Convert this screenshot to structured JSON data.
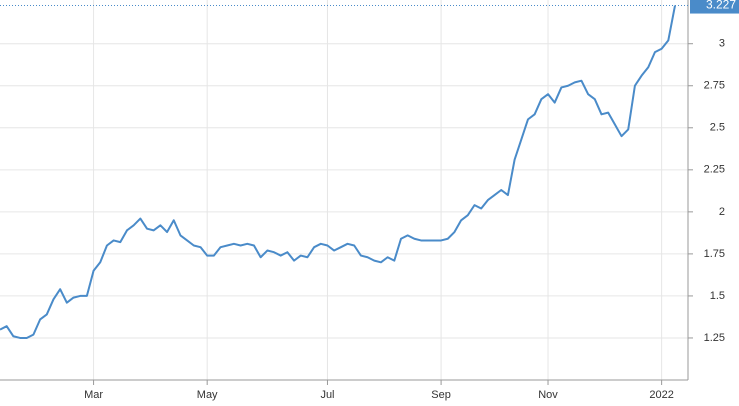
{
  "chart_data": {
    "type": "line",
    "categories": [
      null,
      null,
      null,
      null,
      null,
      null,
      null,
      null,
      null,
      null,
      null,
      null,
      null,
      null,
      "Mar",
      null,
      null,
      null,
      null,
      null,
      null,
      null,
      null,
      null,
      null,
      null,
      null,
      null,
      null,
      null,
      null,
      "May",
      null,
      null,
      null,
      null,
      null,
      null,
      null,
      null,
      null,
      null,
      null,
      null,
      null,
      null,
      null,
      null,
      null,
      "Jul",
      null,
      null,
      null,
      null,
      null,
      null,
      null,
      null,
      null,
      null,
      null,
      null,
      null,
      null,
      null,
      null,
      "Sep",
      null,
      null,
      null,
      null,
      null,
      null,
      null,
      null,
      null,
      null,
      null,
      null,
      null,
      null,
      null,
      "Nov",
      null,
      null,
      null,
      null,
      null,
      null,
      null,
      null,
      null,
      null,
      null,
      null,
      null,
      null,
      null,
      null,
      "2022",
      null,
      null
    ],
    "series": [
      {
        "color": "#4a8bc9",
        "values": [
          1.3,
          1.32,
          1.26,
          1.25,
          1.25,
          1.27,
          1.36,
          1.39,
          1.48,
          1.54,
          1.46,
          1.49,
          1.5,
          1.5,
          1.65,
          1.7,
          1.8,
          1.83,
          1.82,
          1.89,
          1.92,
          1.96,
          1.9,
          1.89,
          1.92,
          1.88,
          1.95,
          1.86,
          1.83,
          1.8,
          1.79,
          1.74,
          1.74,
          1.79,
          1.8,
          1.81,
          1.8,
          1.81,
          1.8,
          1.73,
          1.77,
          1.76,
          1.74,
          1.76,
          1.71,
          1.74,
          1.73,
          1.79,
          1.81,
          1.8,
          1.77,
          1.79,
          1.81,
          1.8,
          1.74,
          1.73,
          1.71,
          1.7,
          1.73,
          1.71,
          1.84,
          1.86,
          1.84,
          1.83,
          1.83,
          1.83,
          1.83,
          1.84,
          1.88,
          1.95,
          1.98,
          2.04,
          2.02,
          2.07,
          2.1,
          2.13,
          2.1,
          2.31,
          2.43,
          2.55,
          2.58,
          2.67,
          2.7,
          2.65,
          2.74,
          2.75,
          2.77,
          2.78,
          2.7,
          2.67,
          2.58,
          2.59,
          2.52,
          2.45,
          2.49,
          2.75,
          2.81,
          2.86,
          2.95,
          2.97,
          3.02,
          3.227
        ]
      }
    ],
    "ylim": [
      1.0,
      3.26
    ],
    "yticks": [
      1.25,
      1.5,
      1.75,
      2,
      2.25,
      2.5,
      2.75,
      3
    ],
    "grid": true
  }
}
